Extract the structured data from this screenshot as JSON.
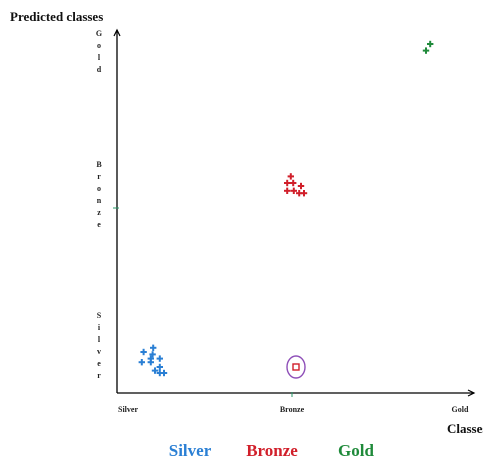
{
  "chart_data": {
    "type": "scatter",
    "title": "",
    "xlabel": "Classes",
    "ylabel": "Predicted classes",
    "x_categories": [
      "Silver",
      "Bronze",
      "Gold"
    ],
    "y_categories": [
      "Silver",
      "Bronze",
      "Gold"
    ],
    "y_tick_labels_stacked": [
      "Gold",
      "Bronze",
      "Silver"
    ],
    "legend": [
      {
        "label": "Silver",
        "color": "#2a7fd4"
      },
      {
        "label": "Bronze",
        "color": "#d11f2a"
      },
      {
        "label": "Gold",
        "color": "#1f8a3a"
      }
    ],
    "series": [
      {
        "color": "#2a7fd4",
        "marker": "plus",
        "x_class": "Silver",
        "y_class": "Silver",
        "points": [
          [
            0.22,
            0.12
          ],
          [
            0.06,
            0.05
          ],
          [
            0.21,
            0.01
          ],
          [
            0.18,
            -0.06
          ],
          [
            0.03,
            -0.12
          ],
          [
            0.18,
            -0.12
          ],
          [
            0.33,
            -0.06
          ],
          [
            0.33,
            -0.2
          ],
          [
            0.25,
            -0.26
          ],
          [
            0.33,
            -0.3
          ],
          [
            0.4,
            -0.3
          ]
        ]
      },
      {
        "color": "#d11f2a",
        "marker": "plus",
        "x_class": "Bronze",
        "y_class": "Bronze",
        "points": [
          [
            -0.02,
            0.26
          ],
          [
            -0.08,
            0.15
          ],
          [
            0.02,
            0.15
          ],
          [
            0.15,
            0.1
          ],
          [
            -0.08,
            0.02
          ],
          [
            0.03,
            0.02
          ],
          [
            0.12,
            -0.02
          ],
          [
            0.2,
            -0.02
          ]
        ]
      },
      {
        "color": "#1f8a3a",
        "marker": "plus",
        "x_class": "Gold",
        "y_class": "Gold",
        "points": [
          [
            -0.03,
            0.15
          ],
          [
            -0.1,
            0.04
          ]
        ]
      }
    ],
    "annotations": [
      {
        "type": "hollow-square-in-circle",
        "x_class": "Bronze",
        "y_class": "Silver",
        "color_square": "#d11f2a",
        "color_circle": "#8e4fb8"
      }
    ],
    "grid": false,
    "legend_position": "bottom"
  }
}
